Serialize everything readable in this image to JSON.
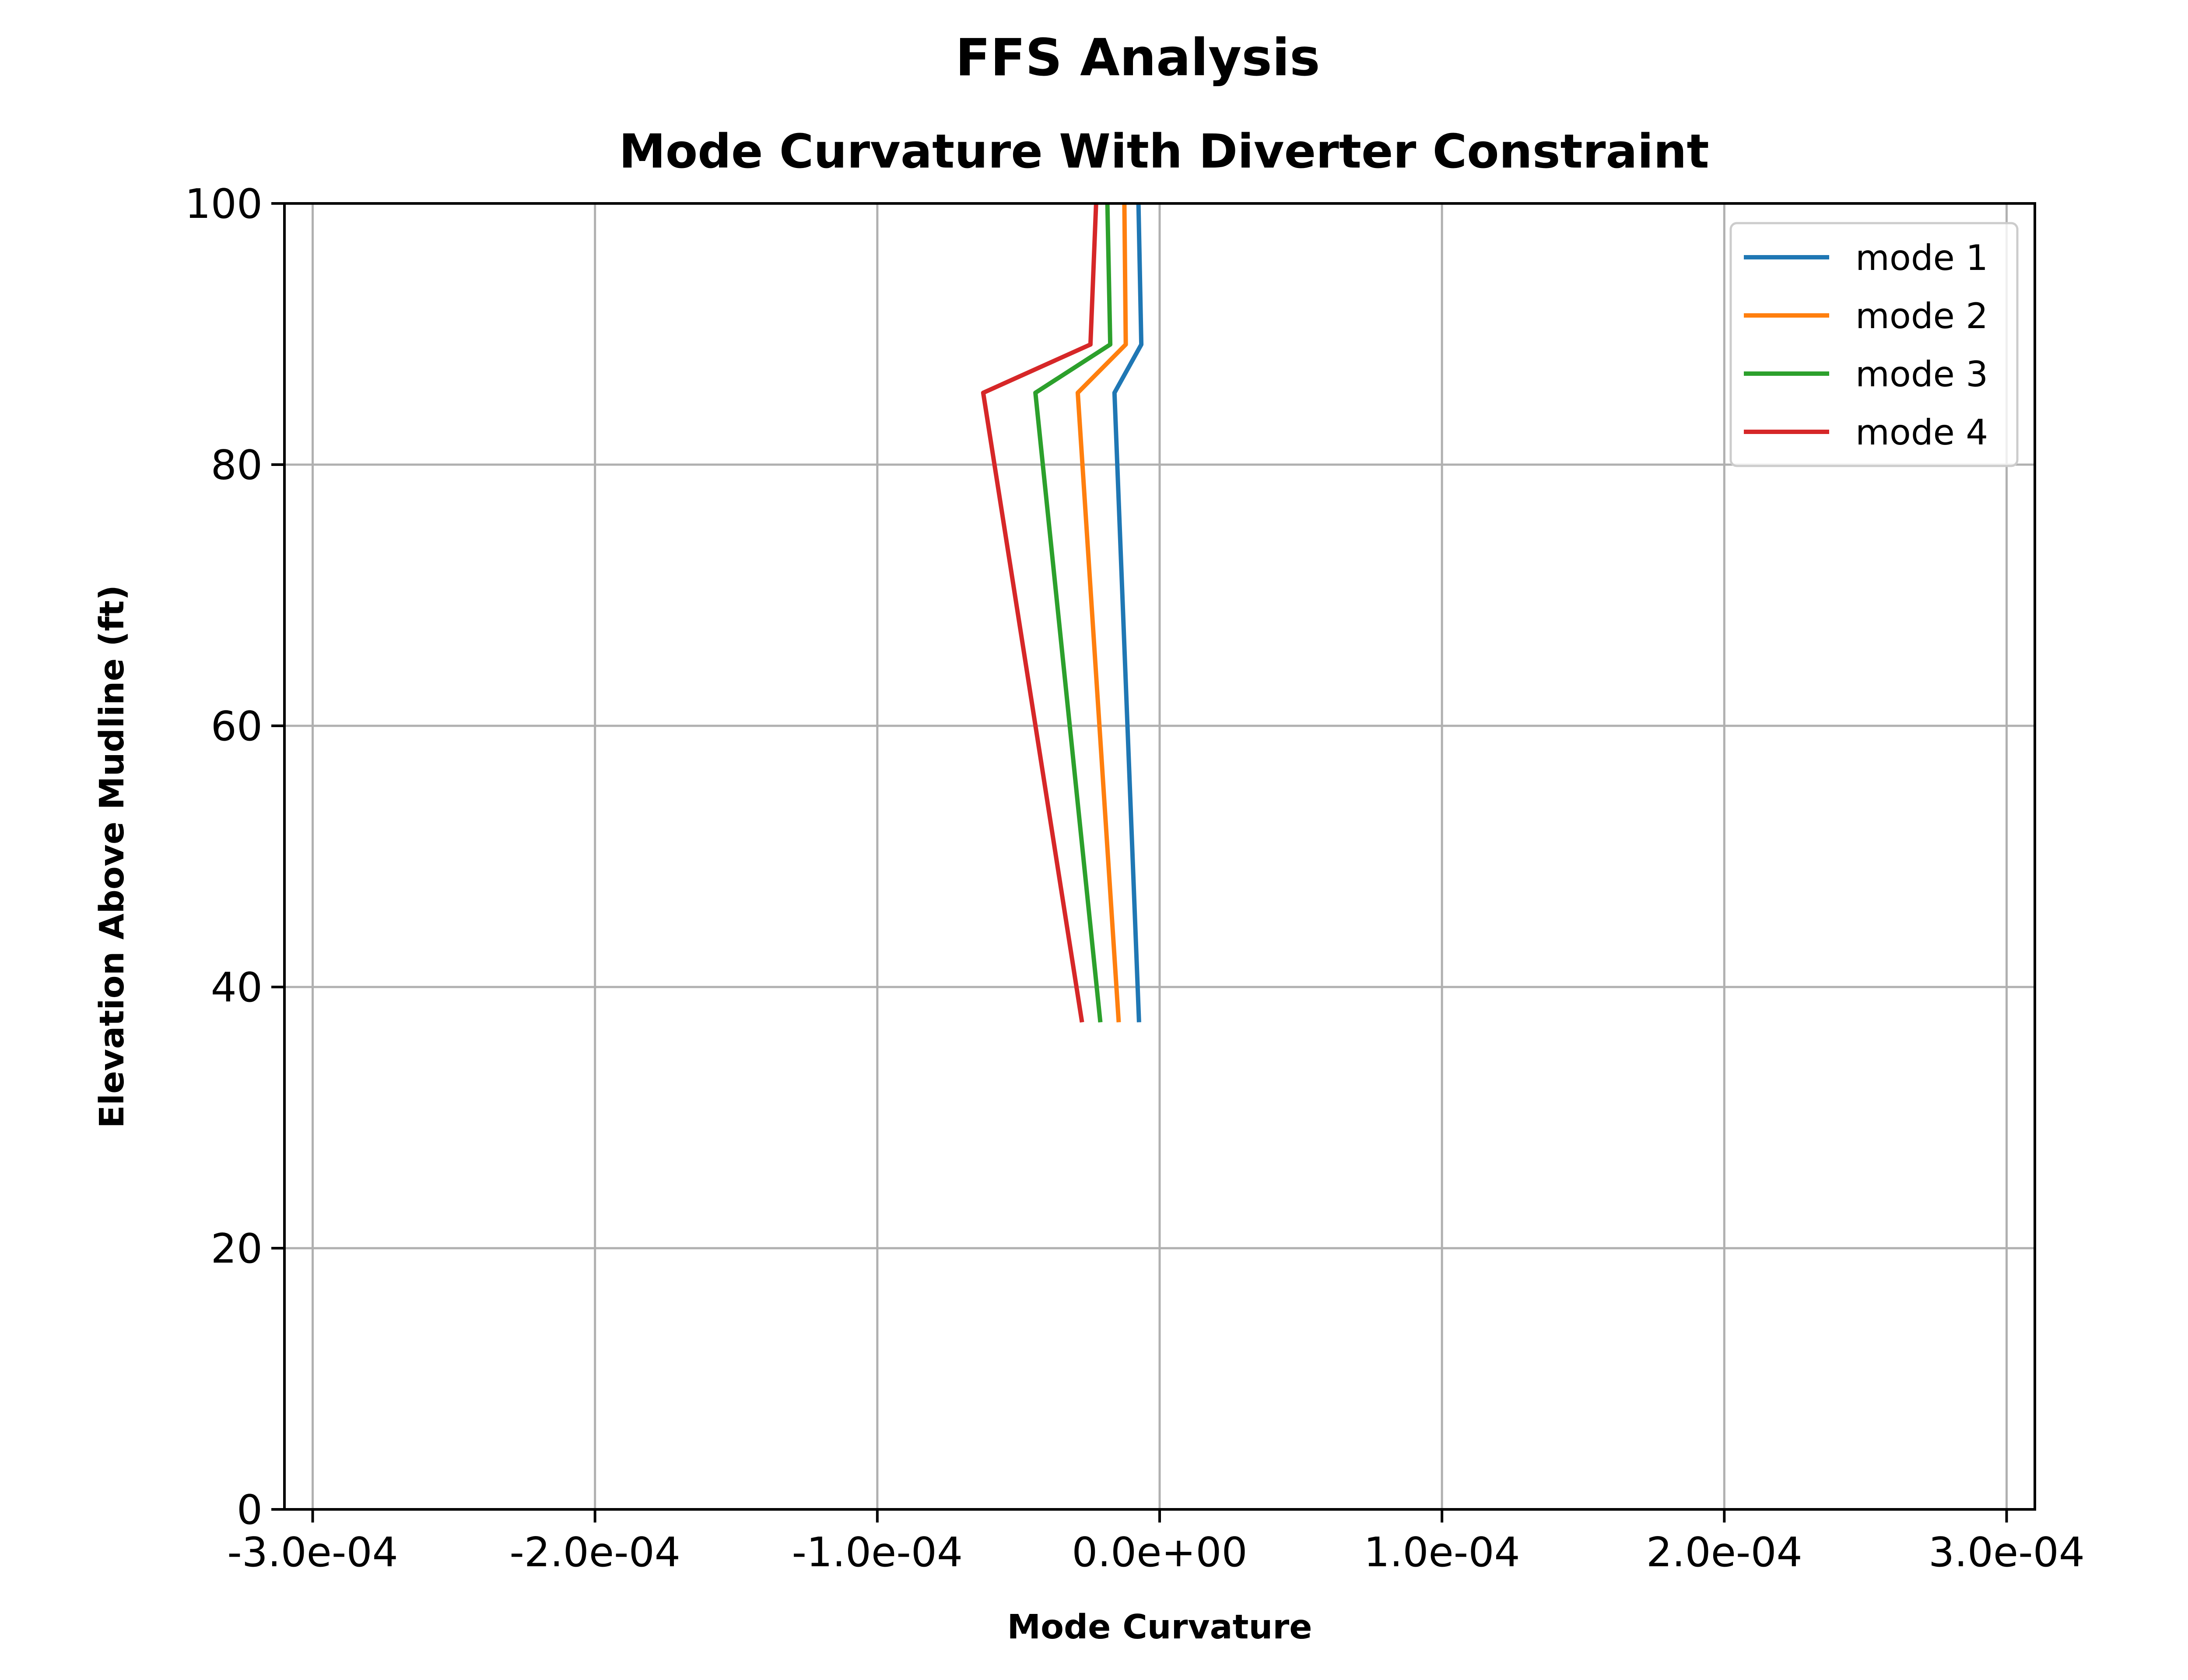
{
  "figure": {
    "suptitle": "FFS Analysis"
  },
  "chart_data": {
    "type": "line",
    "title": "Mode Curvature With Diverter Constraint",
    "xlabel": "Mode Curvature",
    "ylabel": "Elevation Above Mudline (ft)",
    "xlim": [
      -0.00031,
      0.00031
    ],
    "ylim": [
      0,
      100
    ],
    "xticks": [
      -0.0003,
      -0.0002,
      -0.0001,
      0.0,
      0.0001,
      0.0002,
      0.0003
    ],
    "xtick_labels": [
      "-3.0e-04",
      "-2.0e-04",
      "-1.0e-04",
      "0.0e+00",
      "1.0e-04",
      "2.0e-04",
      "3.0e-04"
    ],
    "yticks": [
      0,
      20,
      40,
      60,
      80,
      100
    ],
    "ytick_labels": [
      "0",
      "20",
      "40",
      "60",
      "80",
      "100"
    ],
    "grid": true,
    "legend_position": "top-right",
    "series": [
      {
        "name": "mode 1",
        "color": "#1f77b4",
        "points": [
          [
            -7.3e-06,
            37.3
          ],
          [
            -1.6e-05,
            85.5
          ],
          [
            -6.5e-06,
            89.2
          ],
          [
            -7.5e-06,
            100
          ]
        ]
      },
      {
        "name": "mode 2",
        "color": "#ff7f0e",
        "points": [
          [
            -1.45e-05,
            37.3
          ],
          [
            -2.9e-05,
            85.5
          ],
          [
            -1.2e-05,
            89.2
          ],
          [
            -1.25e-05,
            100
          ]
        ]
      },
      {
        "name": "mode 3",
        "color": "#2ca02c",
        "points": [
          [
            -2.1e-05,
            37.3
          ],
          [
            -4.4e-05,
            85.5
          ],
          [
            -1.75e-05,
            89.2
          ],
          [
            -1.85e-05,
            100
          ]
        ]
      },
      {
        "name": "mode 4",
        "color": "#d62728",
        "points": [
          [
            -2.75e-05,
            37.3
          ],
          [
            -6.25e-05,
            85.5
          ],
          [
            -2.45e-05,
            89.2
          ],
          [
            -2.25e-05,
            100
          ]
        ]
      }
    ]
  }
}
